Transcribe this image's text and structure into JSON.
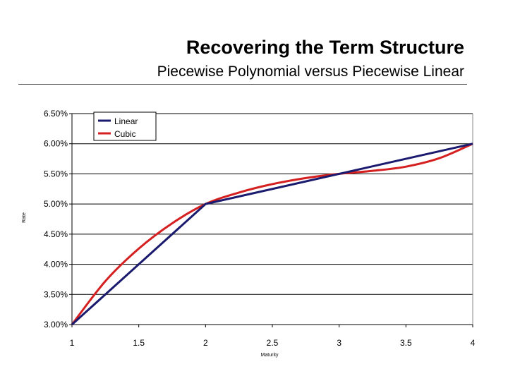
{
  "slide": {
    "title": "Recovering the Term Structure",
    "subtitle": "Piecewise Polynomial versus Piecewise Linear"
  },
  "chart_data": {
    "type": "line",
    "xlabel": "Maturity",
    "ylabel": "Rate",
    "xlim": [
      1,
      4
    ],
    "ylim": [
      3.0,
      6.5
    ],
    "x_ticks": [
      1,
      1.5,
      2,
      2.5,
      3,
      3.5,
      4
    ],
    "x_tick_labels": [
      "1",
      "1.5",
      "2",
      "2.5",
      "3",
      "3.5",
      "4"
    ],
    "y_ticks": [
      3.0,
      3.5,
      4.0,
      4.5,
      5.0,
      5.5,
      6.0,
      6.5
    ],
    "y_tick_labels": [
      "3.00%",
      "3.50%",
      "4.00%",
      "4.50%",
      "5.00%",
      "5.50%",
      "6.00%",
      "6.50%"
    ],
    "grid": "horizontal",
    "legend_position": "top-left",
    "series": [
      {
        "name": "Linear",
        "color": "#1a1a6e",
        "x": [
          1,
          2,
          3,
          4
        ],
        "y": [
          3.0,
          5.0,
          5.5,
          6.0
        ]
      },
      {
        "name": "Cubic",
        "color": "#d42020",
        "x": [
          1,
          1.25,
          1.5,
          1.75,
          2,
          2.25,
          2.5,
          2.75,
          3,
          3.25,
          3.5,
          3.75,
          4
        ],
        "y": [
          3.0,
          3.72,
          4.26,
          4.68,
          5.0,
          5.19,
          5.33,
          5.43,
          5.5,
          5.55,
          5.62,
          5.76,
          6.0
        ]
      }
    ]
  }
}
